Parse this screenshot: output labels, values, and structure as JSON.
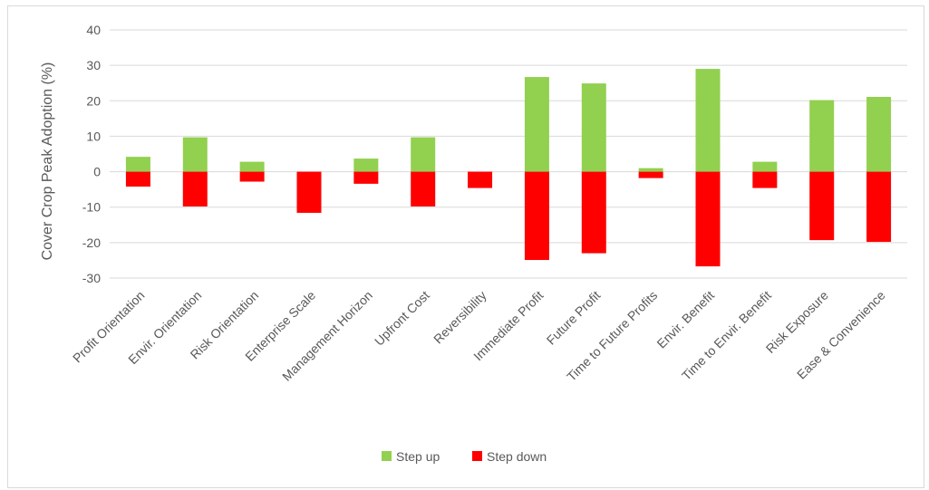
{
  "chart_data": {
    "type": "bar",
    "title": "",
    "xlabel": "",
    "ylabel": "Cover Crop Peak Adoption (%)",
    "ylim": [
      -30,
      40
    ],
    "yticks": [
      40,
      30,
      20,
      10,
      0,
      -10,
      -20,
      -30
    ],
    "grid": true,
    "legend_position": "bottom",
    "categories": [
      "Profit Orientation",
      "Envir. Orientation",
      "Risk Orientation",
      "Enterprise Scale",
      "Management Horizon",
      "Upfront Cost",
      "Reversibility",
      "Immediate Profit",
      "Future Profit",
      "Time to Future Profits",
      "Envir. Benefit",
      "Time to Envir. Benefit",
      "Risk Exposure",
      "Ease & Convenience"
    ],
    "series": [
      {
        "name": "Step up",
        "color": "#92d050",
        "values": [
          4.2,
          9.7,
          2.8,
          0,
          3.7,
          9.7,
          0,
          26.7,
          24.9,
          1.0,
          29.0,
          2.8,
          20.2,
          21.1
        ]
      },
      {
        "name": "Step down",
        "color": "#ff0000",
        "values": [
          -4.2,
          -9.8,
          -2.8,
          -11.6,
          -3.4,
          -9.8,
          -4.6,
          -24.9,
          -23.0,
          -1.8,
          -26.7,
          -4.6,
          -19.3,
          -19.8
        ]
      }
    ]
  }
}
